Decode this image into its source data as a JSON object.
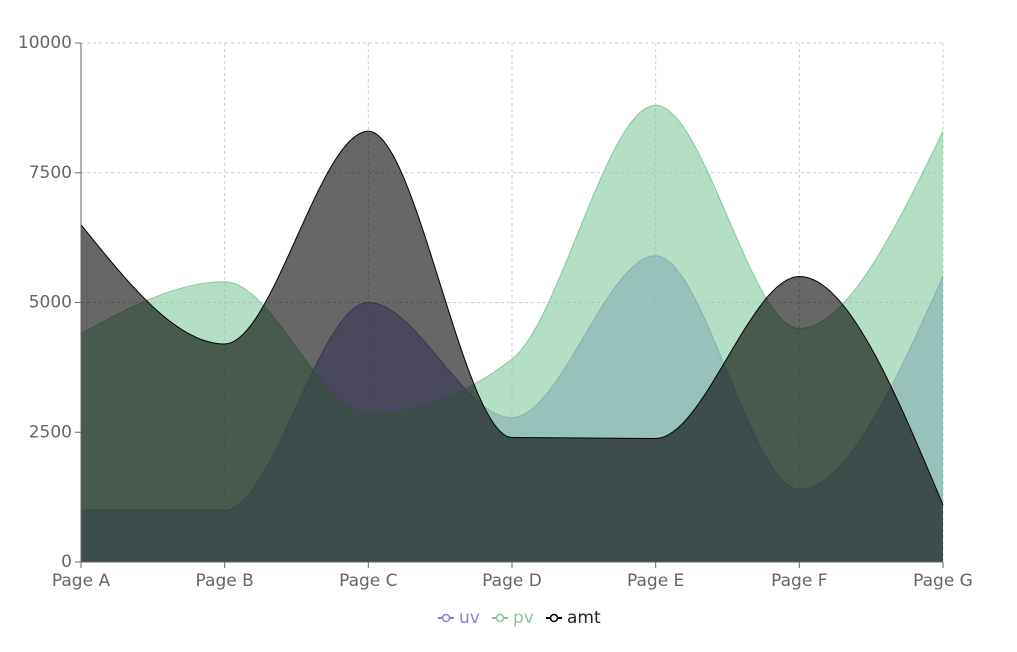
{
  "chart_data": {
    "type": "area",
    "curve": "smooth",
    "categories": [
      "Page A",
      "Page B",
      "Page C",
      "Page D",
      "Page E",
      "Page F",
      "Page G"
    ],
    "ylim": [
      0,
      10000
    ],
    "yticks": [
      0,
      2500,
      5000,
      7500,
      10000
    ],
    "grid": true,
    "legend_position": "bottom-center",
    "series": [
      {
        "name": "uv",
        "values": [
          1000,
          1000,
          5000,
          2780,
          5900,
          1400,
          5500
        ],
        "stroke": "#8884d8",
        "fill": "#8884d8"
      },
      {
        "name": "pv",
        "values": [
          4400,
          5400,
          2850,
          3908,
          8800,
          4500,
          8300
        ],
        "stroke": "#82ca9d",
        "fill": "#82ca9d"
      },
      {
        "name": "amt",
        "values": [
          6500,
          4200,
          8300,
          2400,
          2380,
          5500,
          1100
        ],
        "stroke": "#000000",
        "fill": "#000000"
      }
    ]
  }
}
